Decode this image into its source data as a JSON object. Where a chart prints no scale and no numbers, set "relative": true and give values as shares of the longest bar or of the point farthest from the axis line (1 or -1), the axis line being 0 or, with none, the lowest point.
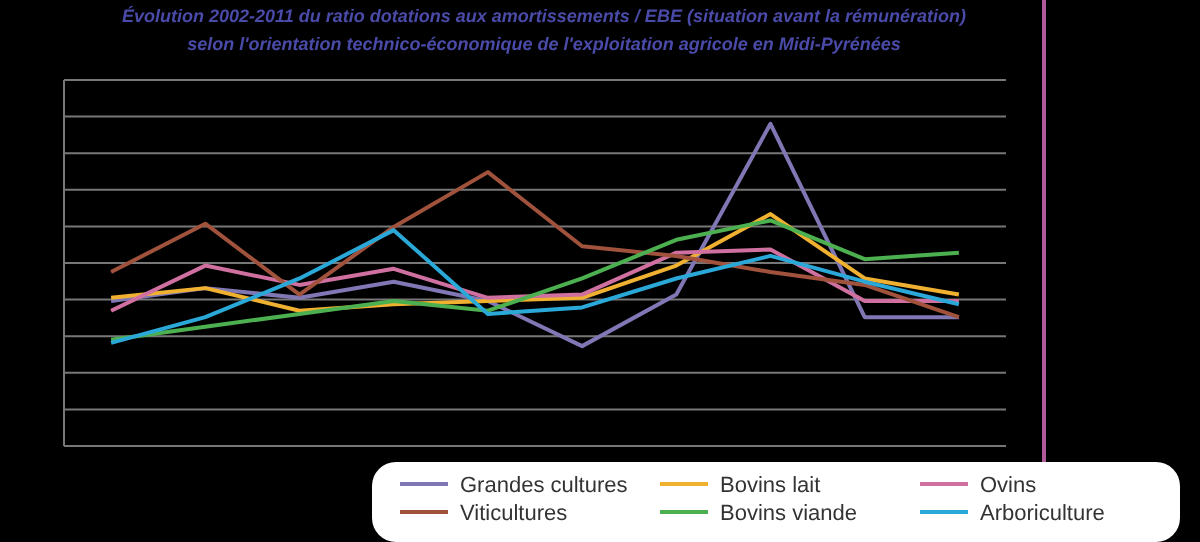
{
  "chart_data": {
    "type": "line",
    "title": "Évolution 2002-2011 du ratio dotations aux amortissements / EBE (situation avant la rémunération)",
    "subtitle": "selon l'orientation technico-économique de l'exploitation agricole en Midi-Pyrénées",
    "relative": true,
    "grid": "y",
    "legend": "bottom",
    "marker": "none",
    "categories": [
      null,
      null,
      null,
      null,
      null,
      null,
      null,
      null,
      null,
      null
    ],
    "series": [
      {
        "name": "Grandes cultures",
        "color": "#8077b5",
        "values": [
          0.45,
          0.49,
          0.46,
          0.51,
          0.45,
          0.31,
          0.47,
          1,
          0.4,
          0.4
        ]
      },
      {
        "name": "Bovins lait",
        "color": "#f0b030",
        "values": [
          0.46,
          0.49,
          0.42,
          0.44,
          0.45,
          0.46,
          0.56,
          0.72,
          0.52,
          0.47
        ]
      },
      {
        "name": "Ovins",
        "color": "#d070a0",
        "values": [
          0.42,
          0.56,
          0.5,
          0.55,
          0.46,
          0.47,
          0.6,
          0.61,
          0.45,
          0.45
        ]
      },
      {
        "name": "Viticultures",
        "color": "#a0523c",
        "values": [
          0.54,
          0.69,
          0.47,
          0.68,
          0.85,
          0.62,
          0.59,
          0.54,
          0.5,
          0.4
        ]
      },
      {
        "name": "Bovins viande",
        "color": "#4caf50",
        "values": [
          0.33,
          0.37,
          0.41,
          0.45,
          0.42,
          0.52,
          0.64,
          0.7,
          0.58,
          0.6
        ]
      },
      {
        "name": "Arboriculture",
        "color": "#2aa8d8",
        "values": [
          0.32,
          0.4,
          0.52,
          0.67,
          0.41,
          0.43,
          0.52,
          0.59,
          0.51,
          0.44
        ]
      }
    ]
  }
}
